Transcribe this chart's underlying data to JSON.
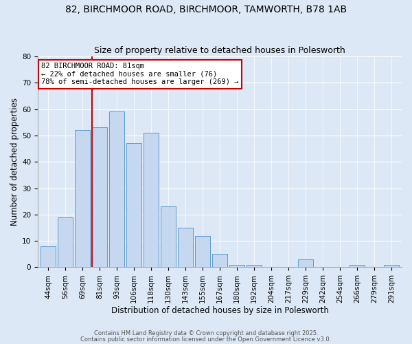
{
  "title": "82, BIRCHMOOR ROAD, BIRCHMOOR, TAMWORTH, B78 1AB",
  "subtitle": "Size of property relative to detached houses in Polesworth",
  "xlabel": "Distribution of detached houses by size in Polesworth",
  "ylabel": "Number of detached properties",
  "bar_labels": [
    "44sqm",
    "56sqm",
    "69sqm",
    "81sqm",
    "93sqm",
    "106sqm",
    "118sqm",
    "130sqm",
    "143sqm",
    "155sqm",
    "167sqm",
    "180sqm",
    "192sqm",
    "204sqm",
    "217sqm",
    "229sqm",
    "242sqm",
    "254sqm",
    "266sqm",
    "279sqm",
    "291sqm"
  ],
  "bar_values": [
    8,
    19,
    52,
    53,
    59,
    47,
    51,
    23,
    15,
    12,
    5,
    1,
    1,
    0,
    0,
    3,
    0,
    0,
    1,
    0,
    1
  ],
  "bar_color": "#c5d8f0",
  "bar_edge_color": "#5b9bd5",
  "ylim": [
    0,
    80
  ],
  "yticks": [
    0,
    10,
    20,
    30,
    40,
    50,
    60,
    70,
    80
  ],
  "vline_x_index": 3,
  "vline_color": "#cc0000",
  "annotation_title": "82 BIRCHMOOR ROAD: 81sqm",
  "annotation_line1": "← 22% of detached houses are smaller (76)",
  "annotation_line2": "78% of semi-detached houses are larger (269) →",
  "annotation_box_color": "#ffffff",
  "annotation_box_edge_color": "#cc0000",
  "footer1": "Contains HM Land Registry data © Crown copyright and database right 2025.",
  "footer2": "Contains public sector information licensed under the Open Government Licence v3.0.",
  "bg_color": "#dce8f5",
  "plot_bg_color": "#dce8f5",
  "title_fontsize": 10,
  "subtitle_fontsize": 9,
  "axis_label_fontsize": 8.5,
  "tick_fontsize": 7.5,
  "annotation_fontsize": 7.5,
  "footer_fontsize": 6.0
}
